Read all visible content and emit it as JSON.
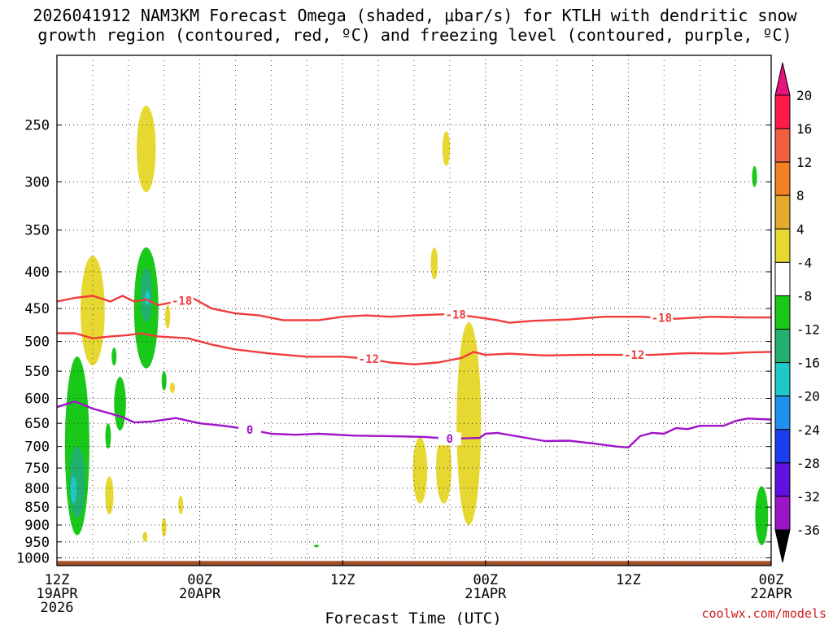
{
  "chart_data": {
    "type": "time-height cross section",
    "title_line1": "2026041912 NAM3KM Forecast Omega (shaded, μbar/s) for KTLH with dendritic snow",
    "title_line2": "growth region (contoured, red, ºC) and freezing level (contoured, purple, ºC)",
    "xlabel": "Forecast Time (UTC)",
    "credit": "coolwx.com/models",
    "x_range_hours": [
      0,
      60
    ],
    "x_ticks": [
      {
        "hour": 0,
        "lines": [
          "12Z",
          "19APR",
          "2026"
        ]
      },
      {
        "hour": 12,
        "lines": [
          "00Z",
          "20APR"
        ]
      },
      {
        "hour": 24,
        "lines": [
          "12Z"
        ]
      },
      {
        "hour": 36,
        "lines": [
          "00Z",
          "21APR"
        ]
      },
      {
        "hour": 48,
        "lines": [
          "12Z"
        ]
      },
      {
        "hour": 60,
        "lines": [
          "00Z",
          "22APR"
        ]
      }
    ],
    "y_range_mb": [
      1025,
      200
    ],
    "y_ticks": [
      250,
      300,
      350,
      400,
      450,
      500,
      550,
      600,
      650,
      700,
      750,
      800,
      850,
      900,
      950,
      1000
    ],
    "colorbar": {
      "labels": [
        "20",
        "16",
        "12",
        "8",
        "4",
        "-4",
        "-8",
        "-12",
        "-16",
        "-20",
        "-24",
        "-28",
        "-32",
        "-36"
      ],
      "colors": [
        "#ff1a4a",
        "#f06040",
        "#f08020",
        "#e6aa30",
        "#e6d830",
        "#ffffff",
        "#19c819",
        "#20b070",
        "#20c8c8",
        "#1e90f0",
        "#1c3cf0",
        "#6010e0",
        "#9a14c8",
        "#a8a8a8"
      ],
      "top_color": "#e6147d",
      "bottom_color": "#000000"
    },
    "contours": [
      {
        "name": "-18 C isotherm",
        "label": "-18",
        "color": "#f03c3c",
        "points": [
          [
            0,
            440
          ],
          [
            1.5,
            435
          ],
          [
            3,
            432
          ],
          [
            4.5,
            440
          ],
          [
            5.5,
            432
          ],
          [
            6.5,
            440
          ],
          [
            7.5,
            437
          ],
          [
            8.5,
            445
          ],
          [
            10,
            440
          ],
          [
            11.5,
            436
          ],
          [
            13,
            450
          ],
          [
            15,
            457
          ],
          [
            17,
            460
          ],
          [
            19,
            467
          ],
          [
            22,
            467
          ],
          [
            24,
            462
          ],
          [
            26,
            460
          ],
          [
            28,
            462
          ],
          [
            30,
            460
          ],
          [
            33,
            458
          ],
          [
            35,
            462
          ],
          [
            37,
            467
          ],
          [
            38,
            471
          ],
          [
            40,
            468
          ],
          [
            43,
            466
          ],
          [
            46,
            462
          ],
          [
            49,
            462
          ],
          [
            52,
            465
          ],
          [
            55,
            462
          ],
          [
            58,
            463
          ],
          [
            60,
            463
          ]
        ],
        "label_hours": [
          10.5,
          33.5,
          50.8
        ]
      },
      {
        "name": "-12 C isotherm",
        "label": "-12",
        "color": "#f03c3c",
        "points": [
          [
            0,
            487
          ],
          [
            1.5,
            487
          ],
          [
            3,
            495
          ],
          [
            4.5,
            492
          ],
          [
            6,
            490
          ],
          [
            7,
            487
          ],
          [
            8.5,
            492
          ],
          [
            11,
            495
          ],
          [
            13,
            505
          ],
          [
            15,
            513
          ],
          [
            18,
            520
          ],
          [
            21,
            525
          ],
          [
            24,
            525
          ],
          [
            26,
            528
          ],
          [
            28,
            535
          ],
          [
            30,
            538
          ],
          [
            32,
            535
          ],
          [
            34,
            527
          ],
          [
            35,
            517
          ],
          [
            36,
            522
          ],
          [
            38,
            520
          ],
          [
            41,
            523
          ],
          [
            44,
            522
          ],
          [
            47,
            522
          ],
          [
            50,
            522
          ],
          [
            53,
            519
          ],
          [
            56,
            520
          ],
          [
            58,
            518
          ],
          [
            60,
            517
          ]
        ],
        "label_hours": [
          26.2,
          48.5
        ]
      },
      {
        "name": "0 C freezing level",
        "label": "0",
        "color": "#a014c8",
        "points": [
          [
            0,
            617
          ],
          [
            1.5,
            606
          ],
          [
            3,
            620
          ],
          [
            4.5,
            630
          ],
          [
            5.5,
            637
          ],
          [
            6.5,
            648
          ],
          [
            8,
            646
          ],
          [
            10,
            639
          ],
          [
            12,
            650
          ],
          [
            14,
            655
          ],
          [
            16,
            662
          ],
          [
            18,
            672
          ],
          [
            20,
            674
          ],
          [
            22,
            672
          ],
          [
            25,
            676
          ],
          [
            28,
            677
          ],
          [
            31,
            679
          ],
          [
            33,
            683
          ],
          [
            35.5,
            681
          ],
          [
            36,
            672
          ],
          [
            37,
            670
          ],
          [
            39,
            679
          ],
          [
            41,
            688
          ],
          [
            43,
            687
          ],
          [
            45,
            693
          ],
          [
            47,
            700
          ],
          [
            48,
            702
          ],
          [
            49,
            677
          ],
          [
            50,
            670
          ],
          [
            51,
            672
          ],
          [
            52,
            660
          ],
          [
            53,
            662
          ],
          [
            54,
            655
          ],
          [
            56,
            655
          ],
          [
            57,
            645
          ],
          [
            58,
            640
          ],
          [
            60,
            642
          ]
        ],
        "label_hours": [
          16.2,
          33.0
        ]
      }
    ],
    "omega_regions": [
      {
        "color": "#19c819",
        "hour": 1.7,
        "p_top": 525,
        "p_bottom": 930
      },
      {
        "color": "#20b070",
        "hour": 1.7,
        "p_top": 700,
        "p_bottom": 880
      },
      {
        "color": "#20c8c8",
        "hour": 1.4,
        "p_top": 770,
        "p_bottom": 840
      },
      {
        "color": "#e6d830",
        "hour": 3.0,
        "p_top": 380,
        "p_bottom": 540
      },
      {
        "color": "#19c819",
        "hour": 4.3,
        "p_top": 650,
        "p_bottom": 705
      },
      {
        "color": "#e6d830",
        "hour": 4.4,
        "p_top": 770,
        "p_bottom": 870
      },
      {
        "color": "#19c819",
        "hour": 4.8,
        "p_top": 510,
        "p_bottom": 540
      },
      {
        "color": "#19c819",
        "hour": 5.3,
        "p_top": 560,
        "p_bottom": 665
      },
      {
        "color": "#19c819",
        "hour": 7.5,
        "p_top": 370,
        "p_bottom": 545
      },
      {
        "color": "#20b070",
        "hour": 7.5,
        "p_top": 395,
        "p_bottom": 470
      },
      {
        "color": "#20c8c8",
        "hour": 7.6,
        "p_top": 425,
        "p_bottom": 445
      },
      {
        "color": "#e6d830",
        "hour": 7.5,
        "p_top": 235,
        "p_bottom": 310
      },
      {
        "color": "#e6d830",
        "hour": 7.4,
        "p_top": 920,
        "p_bottom": 950
      },
      {
        "color": "#19c819",
        "hour": 9.0,
        "p_top": 550,
        "p_bottom": 585
      },
      {
        "color": "#e6d830",
        "hour": 9.3,
        "p_top": 445,
        "p_bottom": 480
      },
      {
        "color": "#e6d830",
        "hour": 9.7,
        "p_top": 570,
        "p_bottom": 590
      },
      {
        "color": "#e6d830",
        "hour": 9.0,
        "p_top": 880,
        "p_bottom": 935
      },
      {
        "color": "#e6d830",
        "hour": 10.4,
        "p_top": 820,
        "p_bottom": 870
      },
      {
        "color": "#19c819",
        "hour": 21.8,
        "p_top": 960,
        "p_bottom": 965
      },
      {
        "color": "#e6d830",
        "hour": 30.5,
        "p_top": 680,
        "p_bottom": 840
      },
      {
        "color": "#e6d830",
        "hour": 32.5,
        "p_top": 670,
        "p_bottom": 840
      },
      {
        "color": "#e6d830",
        "hour": 32.7,
        "p_top": 255,
        "p_bottom": 285
      },
      {
        "color": "#e6d830",
        "hour": 31.7,
        "p_top": 370,
        "p_bottom": 410
      },
      {
        "color": "#e6d830",
        "hour": 34.6,
        "p_top": 470,
        "p_bottom": 900
      },
      {
        "color": "#19c819",
        "hour": 59.2,
        "p_top": 795,
        "p_bottom": 960
      },
      {
        "color": "#19c819",
        "hour": 58.6,
        "p_top": 285,
        "p_bottom": 305
      }
    ],
    "ground_color": "#a0502a",
    "ground_top_mb": 1010
  }
}
